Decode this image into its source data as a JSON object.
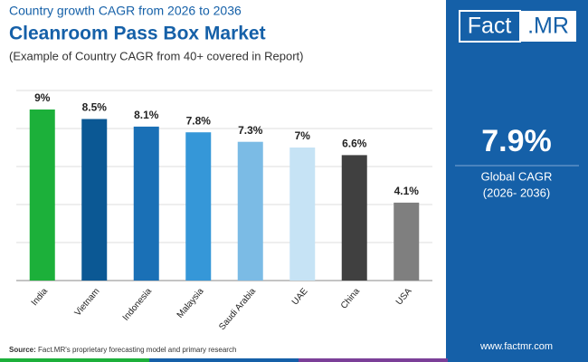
{
  "chart_data": {
    "type": "bar",
    "heading": "Country growth CAGR from 2026 to 2036",
    "title": "Cleanroom Pass Box Market",
    "subtitle": "(Example of Country CAGR from 40+ covered in Report)",
    "categories": [
      "India",
      "Vietnam",
      "Indonesia",
      "Malaysia",
      "Saudi Arabia",
      "UAE",
      "China",
      "USA"
    ],
    "values": [
      9,
      8.5,
      8.1,
      7.8,
      7.3,
      7,
      6.6,
      4.1
    ],
    "value_labels": [
      "9%",
      "8.5%",
      "8.1%",
      "7.8%",
      "7.3%",
      "7%",
      "6.6%",
      "4.1%"
    ],
    "colors": [
      "#1cb03a",
      "#0b5894",
      "#1a70b6",
      "#3597d8",
      "#7bbbe5",
      "#c6e3f5",
      "#404040",
      "#7f7f7f"
    ],
    "ylim": [
      0,
      10
    ],
    "yticks": [
      0,
      2,
      4,
      6,
      8,
      10
    ],
    "grid": true,
    "source_label": "Source:",
    "source": "Fact.MR's proprietary forecasting model and primary research"
  },
  "sidebar": {
    "logo_left": "Fact",
    "logo_right": ".MR",
    "stat": "7.9%",
    "stat_label": "Global CAGR",
    "stat_period": "(2026- 2036)",
    "website": "www.factmr.com"
  }
}
